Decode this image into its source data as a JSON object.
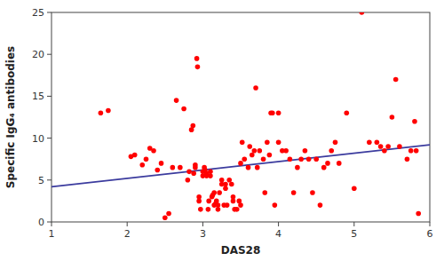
{
  "chart_data": {
    "type": "scatter",
    "title": "",
    "xlabel": "DAS28",
    "ylabel": "Specific IgG₄ antibodies",
    "xlim": [
      1,
      6
    ],
    "ylim": [
      0,
      25
    ],
    "xticks": [
      1,
      2,
      3,
      4,
      5,
      6
    ],
    "yticks": [
      0,
      5,
      10,
      15,
      20,
      25
    ],
    "color": "#ff0000",
    "x": [
      1.65,
      1.75,
      2.05,
      2.1,
      2.2,
      2.25,
      2.3,
      2.35,
      2.4,
      2.45,
      2.5,
      2.55,
      2.6,
      2.65,
      2.7,
      2.75,
      2.8,
      2.82,
      2.85,
      2.87,
      2.88,
      2.9,
      2.9,
      2.92,
      2.93,
      2.95,
      2.95,
      2.97,
      3.0,
      3.0,
      3.02,
      3.03,
      3.05,
      3.05,
      3.07,
      3.08,
      3.1,
      3.1,
      3.12,
      3.13,
      3.15,
      3.15,
      3.17,
      3.18,
      3.2,
      3.2,
      3.22,
      3.25,
      3.25,
      3.28,
      3.3,
      3.3,
      3.32,
      3.35,
      3.38,
      3.4,
      3.4,
      3.42,
      3.45,
      3.48,
      3.5,
      3.5,
      3.52,
      3.55,
      3.6,
      3.62,
      3.65,
      3.68,
      3.7,
      3.72,
      3.75,
      3.8,
      3.82,
      3.85,
      3.88,
      3.9,
      3.92,
      3.95,
      4.0,
      4.0,
      4.05,
      4.1,
      4.15,
      4.2,
      4.25,
      4.3,
      4.35,
      4.4,
      4.45,
      4.5,
      4.55,
      4.6,
      4.65,
      4.7,
      4.75,
      4.8,
      4.9,
      5.0,
      5.1,
      5.2,
      5.3,
      5.35,
      5.4,
      5.45,
      5.5,
      5.55,
      5.6,
      5.7,
      5.75,
      5.8,
      5.82,
      5.85
    ],
    "values": [
      13.0,
      13.3,
      7.8,
      8.0,
      6.8,
      7.5,
      8.8,
      8.5,
      6.2,
      7.0,
      0.5,
      1.0,
      6.5,
      14.5,
      6.5,
      13.5,
      5.0,
      6.0,
      11.0,
      11.5,
      5.8,
      6.5,
      6.8,
      19.5,
      18.5,
      2.5,
      3.0,
      1.5,
      5.5,
      6.0,
      6.5,
      6.2,
      5.5,
      5.8,
      1.5,
      2.5,
      5.5,
      6.0,
      3.0,
      3.2,
      3.5,
      2.0,
      2.2,
      2.5,
      1.5,
      2.0,
      3.5,
      5.0,
      4.5,
      2.0,
      4.0,
      4.5,
      2.0,
      5.0,
      4.5,
      2.5,
      3.0,
      1.5,
      1.5,
      2.5,
      2.0,
      7.0,
      9.5,
      7.5,
      6.5,
      9.0,
      8.0,
      8.5,
      16.0,
      6.5,
      8.5,
      7.5,
      3.5,
      9.5,
      8.0,
      13.0,
      13.0,
      2.0,
      9.5,
      13.0,
      8.5,
      8.5,
      7.5,
      3.5,
      6.5,
      7.5,
      8.5,
      7.5,
      3.5,
      7.5,
      2.0,
      6.5,
      7.0,
      8.5,
      9.5,
      7.0,
      13.0,
      4.0,
      25.0,
      9.5,
      9.5,
      9.0,
      8.5,
      9.0,
      12.5,
      17.0,
      9.0,
      7.5,
      8.5,
      12.0,
      8.5,
      1.0
    ],
    "series": [
      {
        "type": "line",
        "color": "#3b3b9e",
        "x": [
          1.0,
          6.0
        ],
        "values": [
          4.2,
          9.2
        ]
      }
    ]
  }
}
